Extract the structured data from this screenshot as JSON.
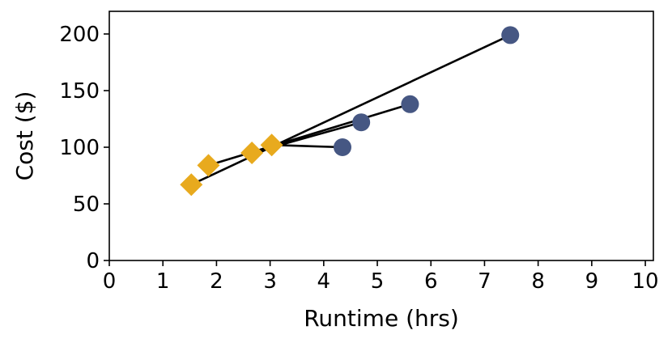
{
  "chart_data": {
    "type": "scatter",
    "xlabel": "Runtime (hrs)",
    "ylabel": "Cost ($)",
    "xlim": [
      0,
      10.15
    ],
    "ylim": [
      0,
      220
    ],
    "xticks": [
      0,
      1,
      2,
      3,
      4,
      5,
      6,
      7,
      8,
      9,
      10
    ],
    "yticks": [
      0,
      50,
      100,
      150,
      200
    ],
    "grid": false,
    "legend": "none",
    "pairs": [
      {
        "diamond": [
          1.53,
          67
        ],
        "circle": [
          7.48,
          199
        ]
      },
      {
        "diamond": [
          1.85,
          84
        ],
        "circle": [
          5.61,
          138
        ]
      },
      {
        "diamond": [
          2.66,
          95
        ],
        "circle": [
          4.7,
          122
        ]
      },
      {
        "diamond": [
          3.03,
          102
        ],
        "circle": [
          4.35,
          100
        ]
      }
    ],
    "colors": {
      "diamond": "#E8AA1E",
      "circle": "#465783",
      "line": "#000000"
    }
  }
}
